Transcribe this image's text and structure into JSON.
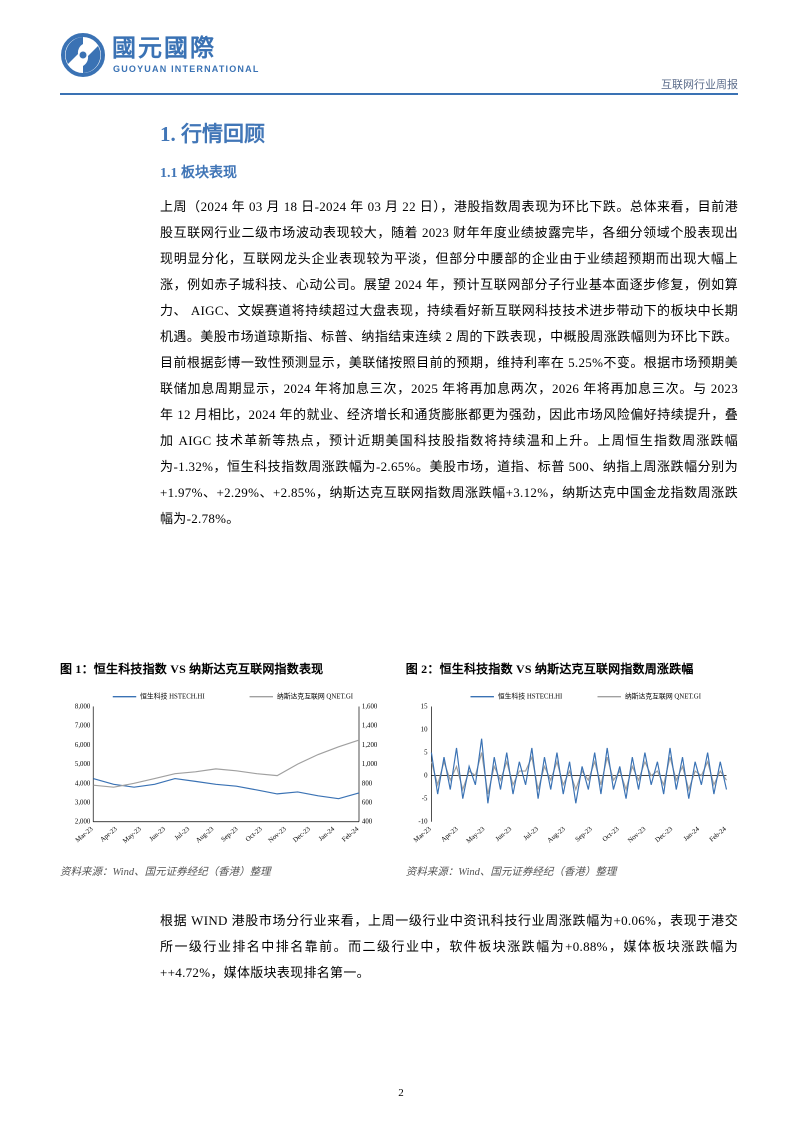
{
  "header": {
    "company_cn": "國元國際",
    "company_en": "GUOYUAN INTERNATIONAL",
    "logo_primary_color": "#3a72b4",
    "logo_bg_white": "#ffffff",
    "report_type": "互联网行业周报",
    "rule_color": "#3a72b4"
  },
  "section": {
    "title": "1. 行情回顾",
    "subtitle": "1.1 板块表现",
    "title_color": "#4176b7",
    "title_fontsize": 21,
    "subtitle_fontsize": 14,
    "body_fontsize": 13,
    "body_line_height": 2.0
  },
  "paragraph1": "上周（2024 年 03 月 18 日-2024 年 03 月 22 日），港股指数周表现为环比下跌。总体来看，目前港股互联网行业二级市场波动表现较大，随着 2023 财年年度业绩披露完毕，各细分领域个股表现出现明显分化，互联网龙头企业表现较为平淡，但部分中腰部的企业由于业绩超预期而出现大幅上涨，例如赤子城科技、心动公司。展望 2024 年，预计互联网部分子行业基本面逐步修复，例如算力、 AIGC、文娱赛道将持续超过大盘表现，持续看好新互联网科技技术进步带动下的板块中长期机遇。美股市场道琼斯指、标普、纳指结束连续 2 周的下跌表现，中概股周涨跌幅则为环比下跌。目前根据彭博一致性预测显示，美联储按照目前的预期，维持利率在 5.25%不变。根据市场预期美联储加息周期显示，2024 年将加息三次，2025 年将再加息两次，2026 年将再加息三次。与 2023 年 12 月相比，2024 年的就业、经济增长和通货膨胀都更为强劲，因此市场风险偏好持续提升，叠加 AIGC 技术革新等热点，预计近期美国科技股指数将持续温和上升。上周恒生指数周涨跌幅为-1.32%，恒生科技指数周涨跌幅为-2.65%。美股市场，道指、标普 500、纳指上周涨跌幅分别为+1.97%、+2.29%、+2.85%，纳斯达克互联网指数周涨跌幅+3.12%，纳斯达克中国金龙指数周涨跌幅为-2.78%。",
  "chart1": {
    "title": "图 1：恒生科技指数 VS 纳斯达克互联网指数表现",
    "type": "line",
    "legend_left": "恒生科技 HSTECH.HI",
    "legend_right": "纳斯达克互联网 QNET.GI",
    "series_left_color": "#3a72b4",
    "series_right_color": "#a0a0a0",
    "background_color": "#ffffff",
    "grid_color": "#e0e0e0",
    "x_labels": [
      "Mar-23",
      "Apr-23",
      "May-23",
      "Jun-23",
      "Jul-23",
      "Aug-23",
      "Sep-23",
      "Oct-23",
      "Nov-23",
      "Dec-23",
      "Jan-24",
      "Feb-24"
    ],
    "y_left_ticks": [
      2000,
      3000,
      4000,
      5000,
      6000,
      7000,
      8000
    ],
    "y_right_ticks": [
      400,
      600,
      800,
      1000,
      1200,
      1400,
      1600
    ],
    "y_left_lim": [
      2000,
      8000
    ],
    "y_right_lim": [
      400,
      1600
    ],
    "axis_fontsize": 7,
    "legend_fontsize": 7,
    "line_width": 1.2,
    "hstech_values": [
      4250,
      3950,
      3800,
      3950,
      4250,
      4100,
      3950,
      3850,
      3650,
      3450,
      3550,
      3350,
      3200,
      3500
    ],
    "qnet_values": [
      780,
      760,
      800,
      850,
      900,
      920,
      950,
      930,
      900,
      880,
      1000,
      1100,
      1180,
      1250
    ],
    "source": "资料来源：Wind、国元证券经纪（香港）整理"
  },
  "chart2": {
    "title": "图 2：恒生科技指数 VS 纳斯达克互联网指数周涨跌幅",
    "type": "line",
    "legend_left": "恒生科技 HSTECH.HI",
    "legend_right": "纳斯达克互联网 QNET.GI",
    "series_left_color": "#3a72b4",
    "series_right_color": "#a0a0a0",
    "background_color": "#ffffff",
    "x_labels": [
      "Mar-23",
      "Apr-23",
      "May-23",
      "Jun-23",
      "Jul-23",
      "Aug-23",
      "Sep-23",
      "Oct-23",
      "Nov-23",
      "Dec-23",
      "Jan-24",
      "Feb-24"
    ],
    "y_ticks": [
      -10,
      -5,
      0,
      5,
      10,
      15
    ],
    "ylim": [
      -10,
      15
    ],
    "axis_fontsize": 7,
    "legend_fontsize": 7,
    "line_width": 1.2,
    "hstech_values": [
      5,
      -4,
      4,
      -3,
      6,
      -5,
      2,
      -2,
      8,
      -6,
      4,
      -3,
      5,
      -4,
      3,
      -2,
      6,
      -5,
      4,
      -3,
      5,
      -4,
      3,
      -6,
      2,
      -3,
      5,
      -4,
      6,
      -3,
      2,
      -5,
      4,
      -3,
      5,
      -2,
      3,
      -4,
      6,
      -3,
      4,
      -5,
      3,
      -2,
      5,
      -4,
      3,
      -3
    ],
    "qnet_values": [
      3,
      -2,
      3,
      -1,
      2,
      -3,
      1,
      0,
      5,
      -4,
      2,
      -1,
      3,
      -2,
      1,
      1,
      4,
      -3,
      2,
      -1,
      3,
      -2,
      1,
      -3,
      1,
      -1,
      3,
      -2,
      4,
      -1,
      1,
      -3,
      2,
      -1,
      3,
      0,
      1,
      -2,
      4,
      -1,
      2,
      -3,
      1,
      0,
      3,
      -2,
      1,
      -1
    ],
    "source": "资料来源：Wind、国元证券经纪（香港）整理"
  },
  "paragraph2": "根据 WIND 港股市场分行业来看，上周一级行业中资讯科技行业周涨跌幅为+0.06%，表现于港交所一级行业排名中排名靠前。而二级行业中，软件板块涨跌幅为+0.88%，媒体板块涨跌幅为++4.72%，媒体版块表现排名第一。",
  "page_number": "2"
}
